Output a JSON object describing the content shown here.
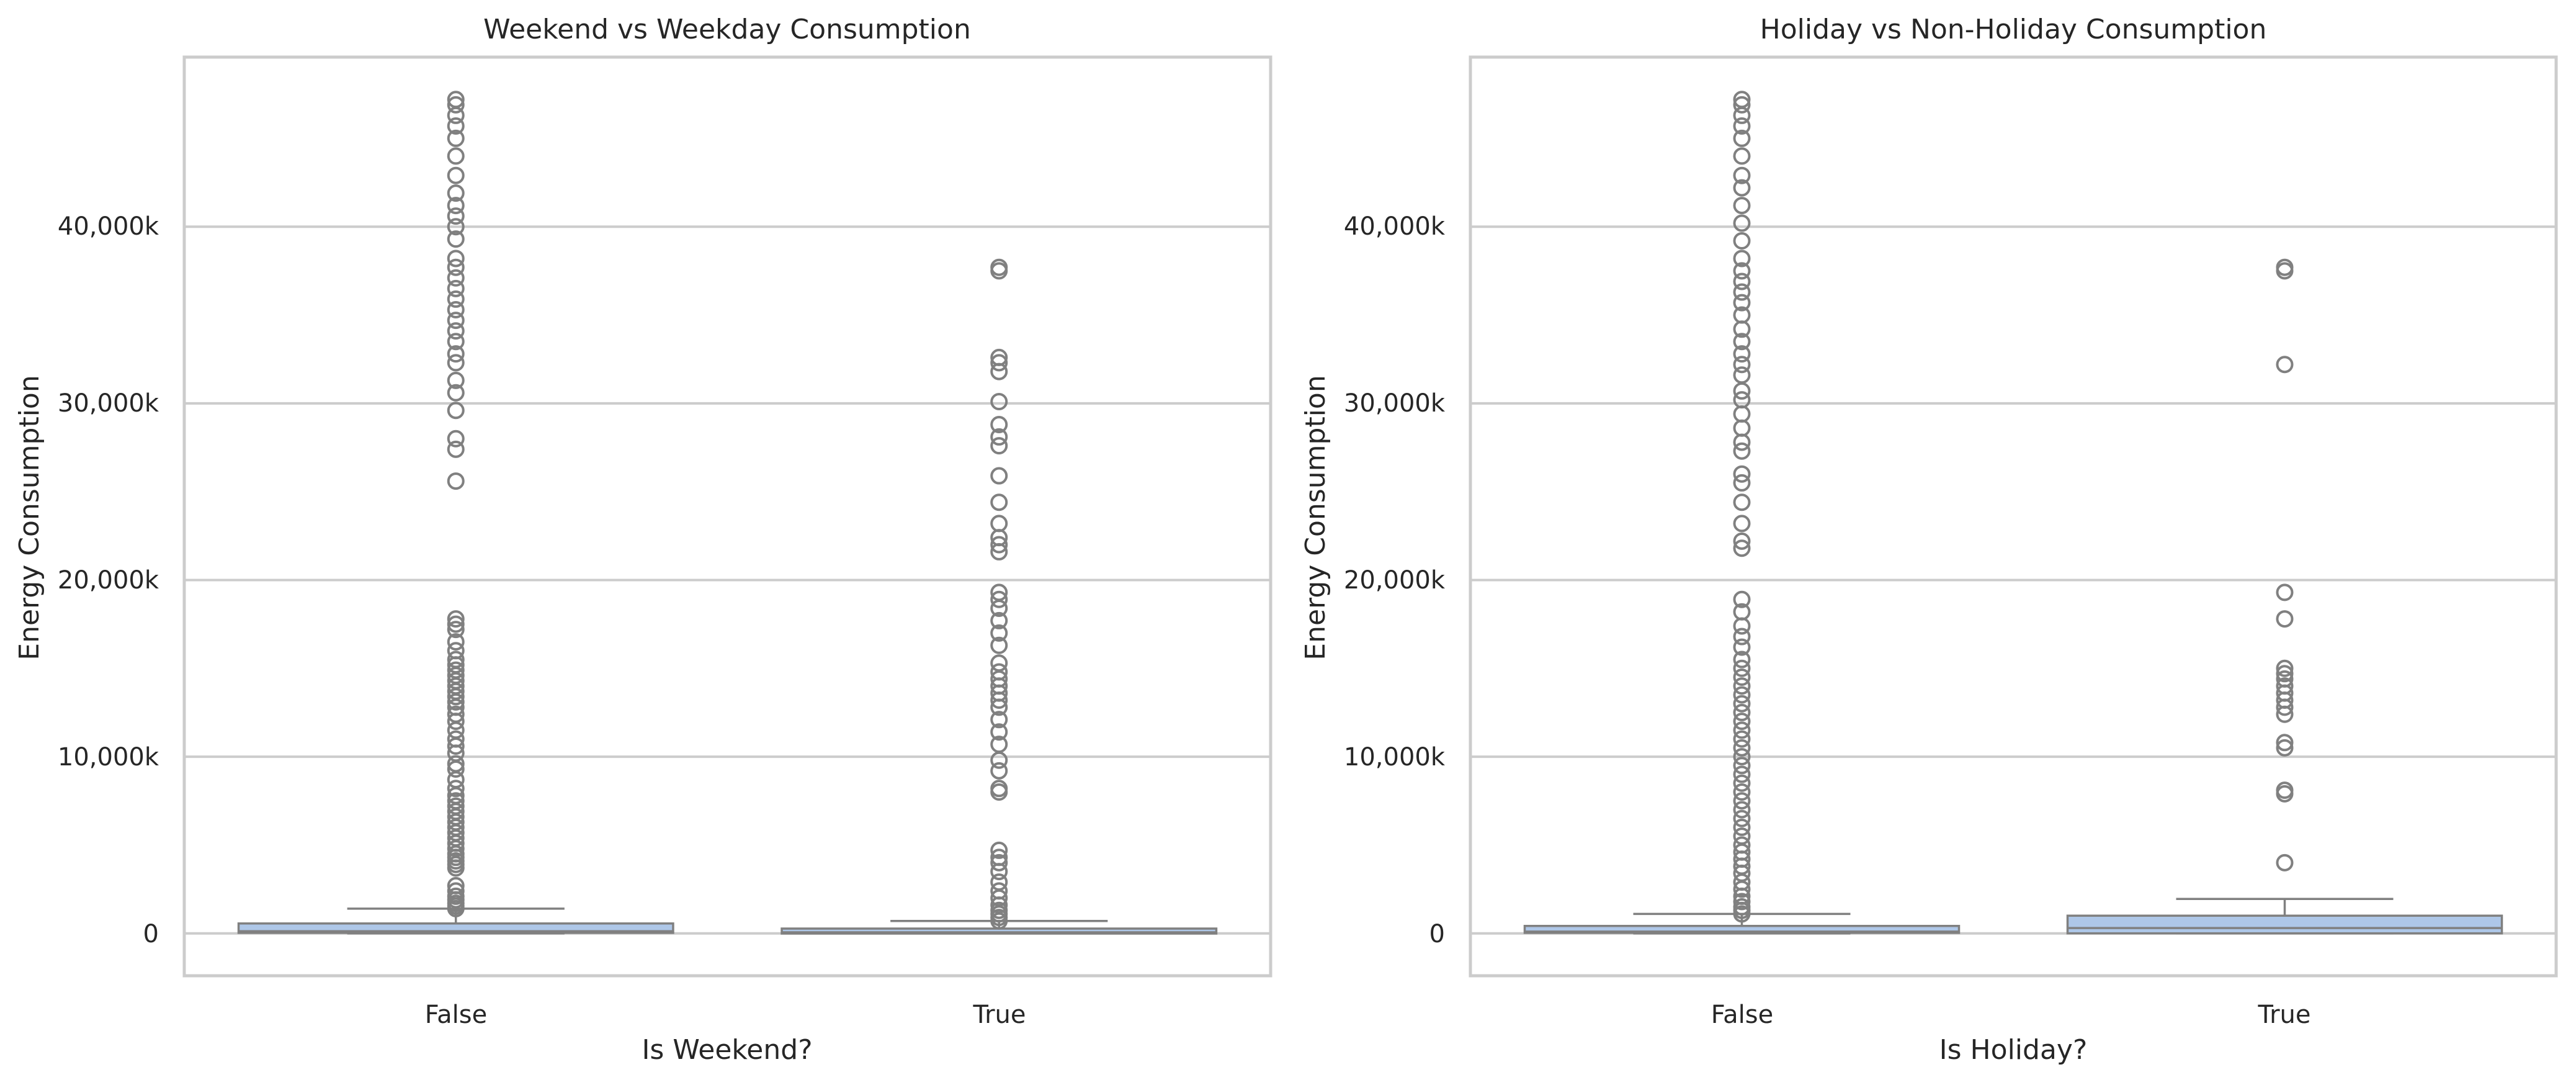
{
  "chart_data": [
    {
      "type": "box",
      "title": "Weekend vs Weekday Consumption",
      "xlabel": "Is Weekend?",
      "ylabel": "Energy Consumption",
      "categories": [
        "False",
        "True"
      ],
      "ylim": [
        -2400,
        49600
      ],
      "yticks": [
        0,
        10000,
        20000,
        30000,
        40000
      ],
      "ytick_labels": [
        "0",
        "10,000k",
        "20,000k",
        "30,000k",
        "40,000k"
      ],
      "grid": "horizontal",
      "box_color": "#aec7e8",
      "flier_color": "#808080",
      "boxes": [
        {
          "category": "False",
          "whislo": 0,
          "q1": 30,
          "med": 120,
          "q3": 560,
          "whishi": 1400,
          "fliers": [
            1400,
            1550,
            1700,
            1900,
            2100,
            2400,
            2700,
            3700,
            3900,
            4100,
            4300,
            4500,
            4800,
            5100,
            5400,
            5700,
            6000,
            6300,
            6600,
            6900,
            7200,
            7500,
            7800,
            8200,
            8700,
            9300,
            9600,
            10200,
            10600,
            11000,
            11500,
            12000,
            12400,
            12800,
            13100,
            13400,
            13700,
            14000,
            14300,
            14600,
            14900,
            15200,
            15500,
            16000,
            16500,
            17200,
            17500,
            17800,
            25600,
            27400,
            28000,
            29600,
            30600,
            31300,
            32300,
            32800,
            33500,
            34100,
            34700,
            35300,
            35900,
            36500,
            37100,
            37700,
            38200,
            39300,
            40000,
            40600,
            41200,
            41900,
            42900,
            44000,
            45000,
            45700,
            46300,
            46900,
            47200
          ]
        },
        {
          "category": "True",
          "whislo": 0,
          "q1": 20,
          "med": 60,
          "q3": 240,
          "whishi": 700,
          "fliers": [
            700,
            900,
            1100,
            1300,
            1600,
            2000,
            2400,
            2900,
            3500,
            4000,
            4300,
            4700,
            8000,
            8200,
            9200,
            9800,
            10700,
            11400,
            12100,
            12800,
            13200,
            13600,
            14000,
            14400,
            14800,
            15300,
            16300,
            17000,
            17700,
            18400,
            18900,
            19300,
            21600,
            22000,
            22400,
            23200,
            24400,
            25900,
            27600,
            28100,
            28800,
            30100,
            31800,
            32300,
            32600,
            37500,
            37700
          ]
        }
      ]
    },
    {
      "type": "box",
      "title": "Holiday vs Non-Holiday Consumption",
      "xlabel": "Is Holiday?",
      "ylabel": "Energy Consumption",
      "categories": [
        "False",
        "True"
      ],
      "ylim": [
        -2400,
        49600
      ],
      "yticks": [
        0,
        10000,
        20000,
        30000,
        40000
      ],
      "ytick_labels": [
        "0",
        "10,000k",
        "20,000k",
        "30,000k",
        "40,000k"
      ],
      "grid": "horizontal",
      "box_color": "#aec7e8",
      "flier_color": "#808080",
      "boxes": [
        {
          "category": "False",
          "whislo": 0,
          "q1": 30,
          "med": 100,
          "q3": 420,
          "whishi": 1100,
          "fliers": [
            1100,
            1300,
            1500,
            1800,
            2100,
            2500,
            2900,
            3400,
            3800,
            4200,
            4600,
            5000,
            5500,
            6000,
            6500,
            7000,
            7500,
            8000,
            8500,
            9000,
            9500,
            10000,
            10500,
            11000,
            11500,
            12000,
            12500,
            13000,
            13500,
            14000,
            14500,
            15000,
            15500,
            16200,
            16800,
            17400,
            18200,
            18900,
            21800,
            22200,
            23200,
            24400,
            25500,
            26000,
            27300,
            27800,
            28600,
            29400,
            30200,
            30700,
            31600,
            32200,
            32800,
            33500,
            34200,
            35000,
            35700,
            36300,
            36900,
            37500,
            38200,
            39200,
            40200,
            41200,
            42200,
            42900,
            44000,
            45000,
            45700,
            46300,
            46900,
            47200
          ]
        },
        {
          "category": "True",
          "whislo": 0,
          "q1": 0,
          "med": 300,
          "q3": 1000,
          "whishi": 1950,
          "fliers": [
            4000,
            7900,
            8100,
            10500,
            10800,
            12400,
            12800,
            13200,
            13600,
            14000,
            14400,
            14700,
            15000,
            17800,
            19300,
            32200,
            37500,
            37700
          ]
        }
      ]
    }
  ]
}
